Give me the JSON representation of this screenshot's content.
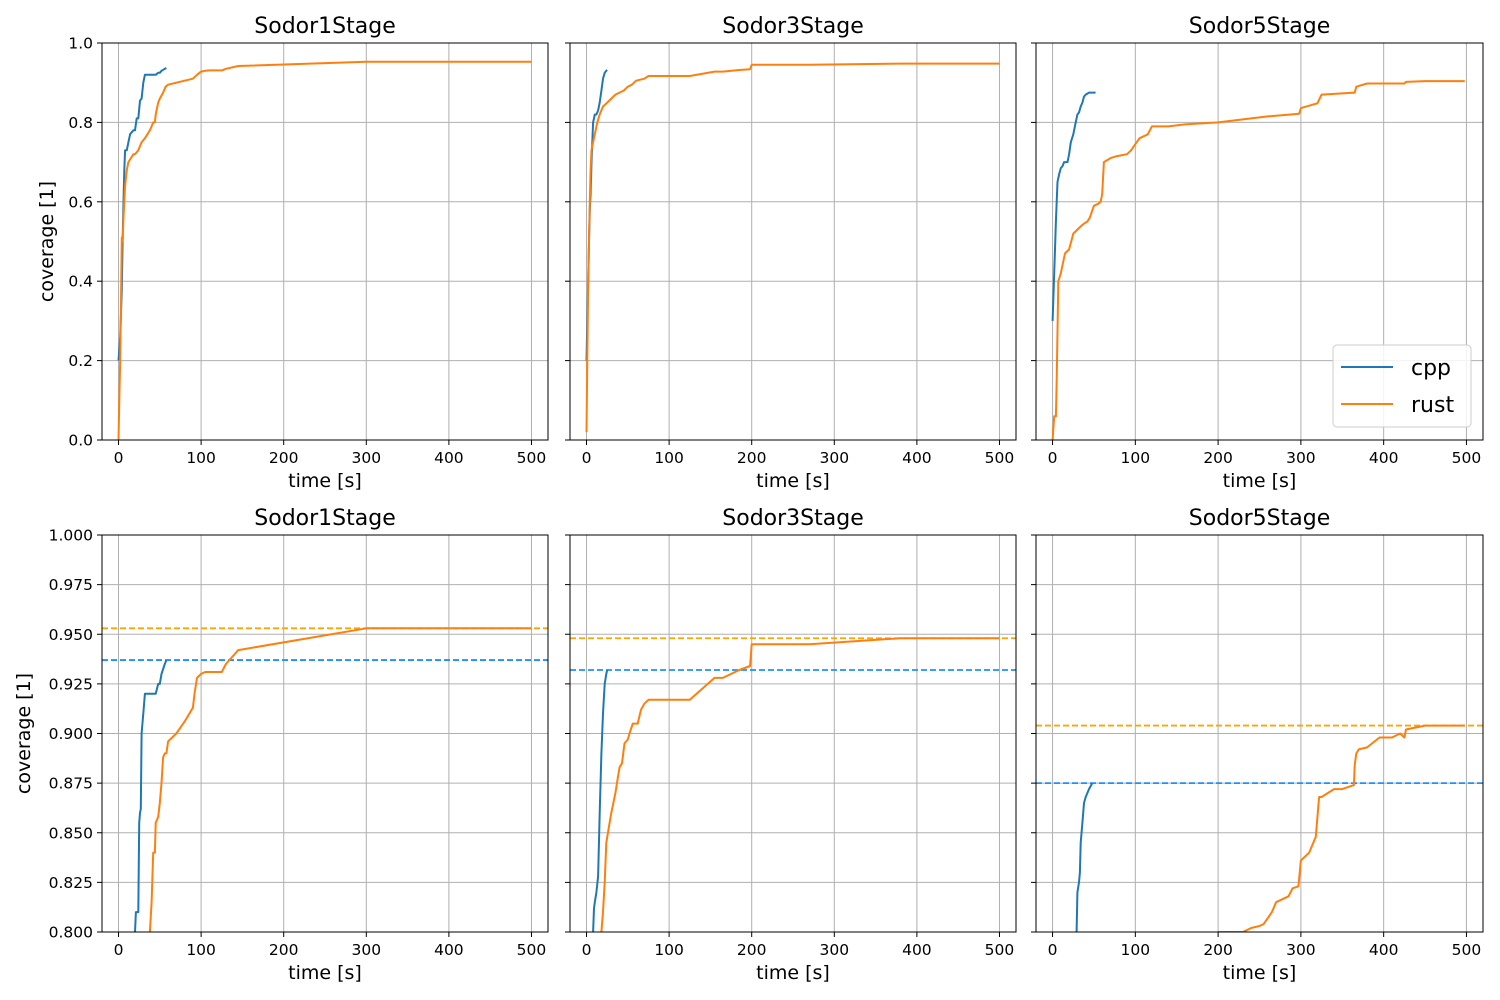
{
  "colors": {
    "cpp": "#1f77b4",
    "rust": "#ff7f0e",
    "cpp_final": "#1e90ff",
    "rust_final": "#ffa500",
    "grid": "#b0b0b0"
  },
  "chart_data": [
    {
      "type": "line",
      "title": "Sodor1Stage",
      "xlabel": "time [s]",
      "ylabel": "coverage [1]",
      "xlim": [
        -20,
        520
      ],
      "ylim": [
        0.0,
        1.0
      ],
      "grid": true,
      "xticks": [
        0,
        100,
        200,
        300,
        400,
        500
      ],
      "xtick_labels": [
        "0",
        "100",
        "200",
        "300",
        "400",
        "500"
      ],
      "yticks": [
        0.0,
        0.2,
        0.4,
        0.6,
        0.8,
        1.0
      ],
      "ytick_labels": [
        "0.0",
        "0.2",
        "0.4",
        "0.6",
        "0.8",
        "1.0"
      ],
      "series": [
        {
          "name": "cpp",
          "x": [
            0,
            2,
            3,
            4,
            5,
            6,
            7,
            8,
            10,
            12,
            14,
            16,
            18,
            20,
            22,
            24,
            26,
            28,
            30,
            32,
            34,
            36,
            45,
            48,
            50,
            52,
            56,
            58
          ],
          "y": [
            0.2,
            0.26,
            0.32,
            0.38,
            0.5,
            0.6,
            0.68,
            0.73,
            0.73,
            0.75,
            0.77,
            0.775,
            0.78,
            0.78,
            0.81,
            0.81,
            0.855,
            0.86,
            0.9,
            0.92,
            0.92,
            0.92,
            0.92,
            0.925,
            0.925,
            0.93,
            0.935,
            0.937
          ]
        },
        {
          "name": "rust",
          "x": [
            0,
            1,
            2,
            3,
            4,
            5,
            6,
            7,
            8,
            10,
            12,
            15,
            18,
            20,
            24,
            28,
            32,
            38,
            40,
            42,
            44,
            45,
            48,
            50,
            54,
            57,
            60,
            70,
            80,
            90,
            95,
            100,
            105,
            110,
            120,
            125,
            130,
            145,
            300,
            400,
            500
          ],
          "y": [
            0.0,
            0.1,
            0.2,
            0.35,
            0.51,
            0.5,
            0.56,
            0.6,
            0.64,
            0.68,
            0.7,
            0.71,
            0.72,
            0.72,
            0.73,
            0.75,
            0.76,
            0.78,
            0.79,
            0.8,
            0.8,
            0.82,
            0.85,
            0.86,
            0.875,
            0.89,
            0.895,
            0.9,
            0.905,
            0.91,
            0.92,
            0.928,
            0.93,
            0.931,
            0.931,
            0.931,
            0.935,
            0.942,
            0.953,
            0.953,
            0.953
          ]
        }
      ],
      "hlines": []
    },
    {
      "type": "line",
      "title": "Sodor3Stage",
      "xlabel": "time [s]",
      "ylabel": "",
      "xlim": [
        -20,
        520
      ],
      "ylim": [
        0.0,
        1.0
      ],
      "grid": true,
      "xticks": [
        0,
        100,
        200,
        300,
        400,
        500
      ],
      "xtick_labels": [
        "0",
        "100",
        "200",
        "300",
        "400",
        "500"
      ],
      "yticks": [
        0.0,
        0.2,
        0.4,
        0.6,
        0.8,
        1.0
      ],
      "ytick_labels": [],
      "series": [
        {
          "name": "cpp",
          "x": [
            0,
            1,
            2,
            3,
            4,
            5,
            6,
            7,
            8,
            9,
            10,
            12,
            14,
            16,
            18,
            20,
            22,
            24,
            25
          ],
          "y": [
            0.2,
            0.3,
            0.4,
            0.5,
            0.58,
            0.62,
            0.7,
            0.75,
            0.8,
            0.81,
            0.82,
            0.82,
            0.83,
            0.85,
            0.88,
            0.91,
            0.925,
            0.93,
            0.932
          ]
        },
        {
          "name": "rust",
          "x": [
            0,
            1,
            2,
            3,
            4,
            5,
            6,
            8,
            10,
            13,
            16,
            20,
            25,
            30,
            35,
            40,
            45,
            50,
            55,
            60,
            70,
            75,
            80,
            100,
            125,
            155,
            165,
            185,
            198,
            200,
            270,
            380,
            500
          ],
          "y": [
            0.02,
            0.2,
            0.4,
            0.5,
            0.6,
            0.68,
            0.73,
            0.75,
            0.77,
            0.8,
            0.82,
            0.84,
            0.85,
            0.86,
            0.87,
            0.875,
            0.88,
            0.89,
            0.895,
            0.905,
            0.91,
            0.917,
            0.917,
            0.917,
            0.917,
            0.928,
            0.928,
            0.932,
            0.934,
            0.945,
            0.945,
            0.948,
            0.948
          ]
        }
      ],
      "hlines": []
    },
    {
      "type": "line",
      "title": "Sodor5Stage",
      "xlabel": "time [s]",
      "ylabel": "",
      "xlim": [
        -20,
        520
      ],
      "ylim": [
        0.0,
        1.0
      ],
      "grid": true,
      "xticks": [
        0,
        100,
        200,
        300,
        400,
        500
      ],
      "xtick_labels": [
        "0",
        "100",
        "200",
        "300",
        "400",
        "500"
      ],
      "yticks": [
        0.0,
        0.2,
        0.4,
        0.6,
        0.8,
        1.0
      ],
      "ytick_labels": [],
      "legend": {
        "loc": "lower-right",
        "entries": [
          "cpp",
          "rust"
        ]
      },
      "series": [
        {
          "name": "cpp",
          "x": [
            0,
            1,
            2,
            3,
            4,
            5,
            6,
            8,
            10,
            12,
            14,
            16,
            18,
            20,
            22,
            25,
            28,
            30,
            32,
            34,
            36,
            38,
            40,
            44,
            48,
            52
          ],
          "y": [
            0.3,
            0.36,
            0.42,
            0.48,
            0.55,
            0.6,
            0.65,
            0.67,
            0.685,
            0.69,
            0.7,
            0.7,
            0.7,
            0.72,
            0.75,
            0.77,
            0.8,
            0.82,
            0.825,
            0.84,
            0.85,
            0.865,
            0.87,
            0.875,
            0.875,
            0.875
          ]
        },
        {
          "name": "rust",
          "x": [
            0,
            2,
            4,
            5,
            7,
            10,
            15,
            20,
            25,
            30,
            35,
            38,
            42,
            45,
            50,
            55,
            58,
            60,
            62,
            70,
            78,
            85,
            90,
            95,
            100,
            105,
            115,
            120,
            140,
            160,
            200,
            260,
            298,
            300,
            320,
            325,
            365,
            367,
            380,
            425,
            427,
            450,
            498
          ],
          "y": [
            0.0,
            0.06,
            0.06,
            0.15,
            0.4,
            0.42,
            0.47,
            0.48,
            0.52,
            0.53,
            0.54,
            0.545,
            0.55,
            0.56,
            0.59,
            0.595,
            0.6,
            0.62,
            0.7,
            0.71,
            0.715,
            0.718,
            0.72,
            0.73,
            0.745,
            0.76,
            0.77,
            0.79,
            0.79,
            0.795,
            0.8,
            0.815,
            0.822,
            0.836,
            0.848,
            0.87,
            0.875,
            0.89,
            0.898,
            0.898,
            0.902,
            0.904,
            0.904
          ]
        }
      ],
      "hlines": []
    },
    {
      "type": "line",
      "title": "Sodor1Stage",
      "xlabel": "time [s]",
      "ylabel": "coverage [1]",
      "xlim": [
        -20,
        520
      ],
      "ylim": [
        0.8,
        1.0
      ],
      "grid": true,
      "xticks": [
        0,
        100,
        200,
        300,
        400,
        500
      ],
      "xtick_labels": [
        "0",
        "100",
        "200",
        "300",
        "400",
        "500"
      ],
      "yticks": [
        0.8,
        0.825,
        0.85,
        0.875,
        0.9,
        0.925,
        0.95,
        0.975,
        1.0
      ],
      "ytick_labels": [
        "0.800",
        "0.825",
        "0.850",
        "0.875",
        "0.900",
        "0.925",
        "0.950",
        "0.975",
        "1.000"
      ],
      "series": [
        {
          "name": "cpp",
          "x": [
            20,
            21,
            22,
            24,
            25,
            26,
            27,
            28,
            30,
            32,
            34,
            36,
            40,
            45,
            48,
            50,
            52,
            56,
            58
          ],
          "y": [
            0.8,
            0.81,
            0.81,
            0.81,
            0.855,
            0.86,
            0.862,
            0.9,
            0.91,
            0.92,
            0.92,
            0.92,
            0.92,
            0.92,
            0.925,
            0.925,
            0.93,
            0.935,
            0.937
          ]
        },
        {
          "name": "rust",
          "x": [
            38,
            40,
            42,
            44,
            45,
            48,
            50,
            52,
            54,
            56,
            58,
            60,
            70,
            80,
            90,
            92,
            95,
            100,
            105,
            110,
            120,
            125,
            130,
            145,
            300,
            400,
            500
          ],
          "y": [
            0.8,
            0.815,
            0.84,
            0.84,
            0.855,
            0.858,
            0.865,
            0.875,
            0.888,
            0.89,
            0.89,
            0.896,
            0.9,
            0.906,
            0.913,
            0.92,
            0.928,
            0.93,
            0.931,
            0.931,
            0.931,
            0.931,
            0.935,
            0.942,
            0.953,
            0.953,
            0.953
          ]
        }
      ],
      "hlines": [
        {
          "series": "cpp",
          "y": 0.937
        },
        {
          "series": "rust",
          "y": 0.953
        }
      ]
    },
    {
      "type": "line",
      "title": "Sodor3Stage",
      "xlabel": "time [s]",
      "ylabel": "",
      "xlim": [
        -20,
        520
      ],
      "ylim": [
        0.8,
        1.0
      ],
      "grid": true,
      "xticks": [
        0,
        100,
        200,
        300,
        400,
        500
      ],
      "xtick_labels": [
        "0",
        "100",
        "200",
        "300",
        "400",
        "500"
      ],
      "yticks": [
        0.8,
        0.825,
        0.85,
        0.875,
        0.9,
        0.925,
        0.95,
        0.975,
        1.0
      ],
      "ytick_labels": [],
      "series": [
        {
          "name": "cpp",
          "x": [
            8,
            9,
            10,
            12,
            14,
            16,
            18,
            20,
            22,
            24,
            25
          ],
          "y": [
            0.8,
            0.812,
            0.815,
            0.82,
            0.828,
            0.86,
            0.89,
            0.91,
            0.925,
            0.93,
            0.932
          ]
        },
        {
          "name": "rust",
          "x": [
            18,
            20,
            22,
            24,
            28,
            30,
            35,
            38,
            40,
            43,
            46,
            50,
            52,
            56,
            62,
            66,
            70,
            75,
            80,
            100,
            125,
            155,
            165,
            185,
            198,
            200,
            270,
            380,
            500
          ],
          "y": [
            0.8,
            0.81,
            0.825,
            0.845,
            0.855,
            0.86,
            0.87,
            0.878,
            0.883,
            0.885,
            0.895,
            0.897,
            0.9,
            0.905,
            0.905,
            0.912,
            0.915,
            0.917,
            0.917,
            0.917,
            0.917,
            0.928,
            0.928,
            0.932,
            0.934,
            0.945,
            0.945,
            0.948,
            0.948
          ]
        }
      ],
      "hlines": [
        {
          "series": "cpp",
          "y": 0.932
        },
        {
          "series": "rust",
          "y": 0.948
        }
      ]
    },
    {
      "type": "line",
      "title": "Sodor5Stage",
      "xlabel": "time [s]",
      "ylabel": "",
      "xlim": [
        -20,
        520
      ],
      "ylim": [
        0.8,
        1.0
      ],
      "grid": true,
      "xticks": [
        0,
        100,
        200,
        300,
        400,
        500
      ],
      "xtick_labels": [
        "0",
        "100",
        "200",
        "300",
        "400",
        "500"
      ],
      "yticks": [
        0.8,
        0.825,
        0.85,
        0.875,
        0.9,
        0.925,
        0.95,
        0.975,
        1.0
      ],
      "ytick_labels": [],
      "series": [
        {
          "name": "cpp",
          "x": [
            29,
            30,
            32,
            33,
            34,
            36,
            38,
            40,
            44,
            48
          ],
          "y": [
            0.8,
            0.82,
            0.825,
            0.83,
            0.845,
            0.855,
            0.865,
            0.868,
            0.872,
            0.875
          ]
        },
        {
          "name": "rust",
          "x": [
            200,
            215,
            220,
            230,
            240,
            250,
            255,
            260,
            265,
            270,
            280,
            285,
            290,
            297,
            300,
            310,
            318,
            322,
            325,
            340,
            350,
            364,
            365,
            367,
            370,
            380,
            395,
            410,
            420,
            425,
            427,
            450,
            498
          ],
          "y": [
            0.8,
            0.8,
            0.8,
            0.8,
            0.802,
            0.803,
            0.804,
            0.807,
            0.81,
            0.815,
            0.817,
            0.818,
            0.822,
            0.823,
            0.836,
            0.84,
            0.848,
            0.868,
            0.868,
            0.872,
            0.872,
            0.874,
            0.884,
            0.89,
            0.892,
            0.893,
            0.898,
            0.898,
            0.9,
            0.898,
            0.902,
            0.904,
            0.904
          ]
        }
      ],
      "hlines": [
        {
          "series": "cpp",
          "y": 0.875
        },
        {
          "series": "rust",
          "y": 0.904
        }
      ]
    }
  ]
}
